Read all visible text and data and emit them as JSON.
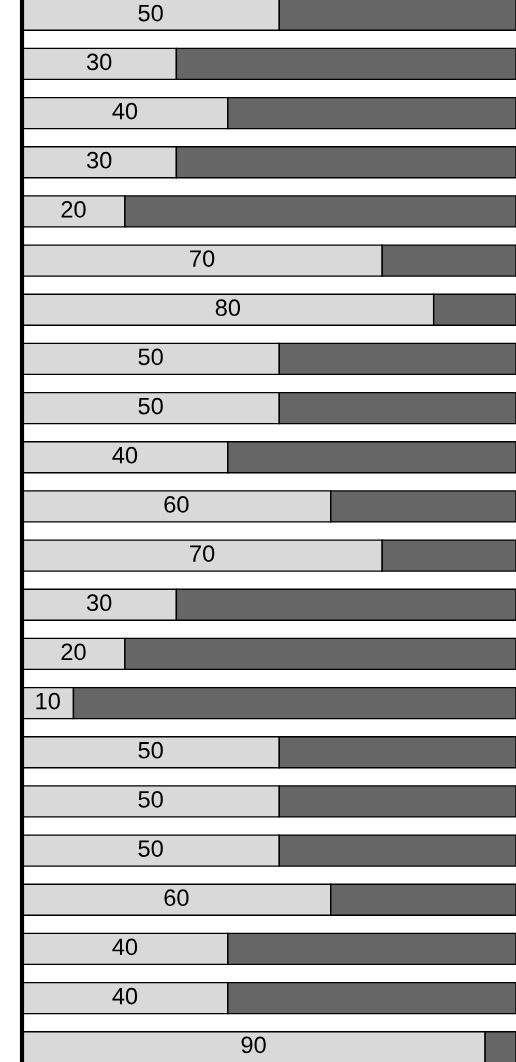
{
  "chart_data": {
    "type": "bar",
    "orientation": "horizontal",
    "stacked": true,
    "categories": [
      null,
      null,
      null,
      null,
      null,
      null,
      null,
      null,
      null,
      null,
      null,
      null,
      null,
      null,
      null,
      null,
      null,
      null,
      null,
      null,
      null,
      null
    ],
    "series": [
      {
        "color": "#d9d9d9",
        "values": [
          50,
          30,
          40,
          30,
          20,
          70,
          80,
          50,
          50,
          40,
          60,
          70,
          30,
          20,
          10,
          50,
          50,
          50,
          60,
          40,
          40,
          90
        ],
        "value_labels": [
          "50",
          "30",
          "40",
          "30",
          "20",
          "70",
          "80",
          "50",
          "50",
          "40",
          "60",
          "70",
          "30",
          "20",
          "10",
          "50",
          "50",
          "50",
          "60",
          "40",
          "40",
          "90"
        ]
      },
      {
        "color": "#666666",
        "values": [
          46,
          66,
          56,
          66,
          76,
          26,
          16,
          46,
          46,
          56,
          36,
          26,
          66,
          76,
          86,
          46,
          46,
          46,
          36,
          56,
          56,
          6
        ]
      }
    ],
    "xlim": [
      0,
      96
    ]
  }
}
